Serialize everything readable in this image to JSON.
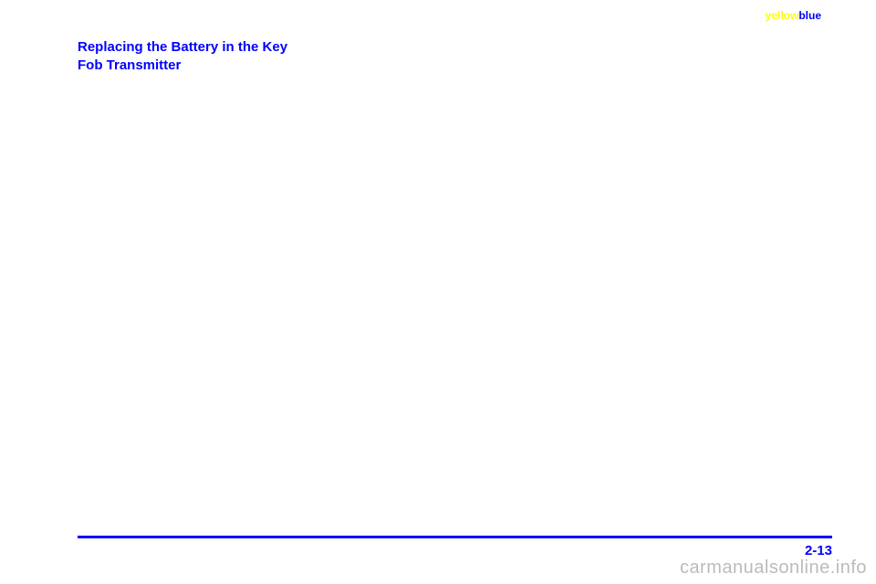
{
  "header": {
    "word1": "yellow",
    "word2": "blue"
  },
  "section": {
    "title_line1": "Replacing the Battery in the Key",
    "title_line2": "Fob Transmitter"
  },
  "footer": {
    "page_number": "2-13"
  },
  "watermark": {
    "text": "carmanualsonline.info"
  },
  "colors": {
    "blue": "#0000ff",
    "yellow": "#ffff00",
    "watermark": "#bbbbbb",
    "background": "#ffffff"
  }
}
